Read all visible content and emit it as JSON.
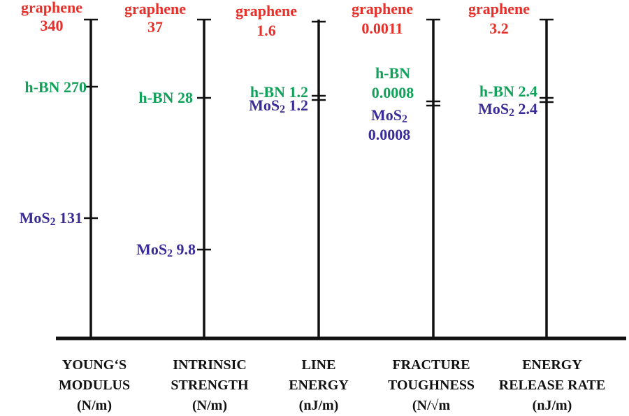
{
  "colors": {
    "graphene": "#e8302a",
    "hbn": "#12a15a",
    "mos2": "#3a2c98",
    "axis": "#111111",
    "label": "#111111"
  },
  "chart_data": {
    "type": "multi-axis-comparison",
    "materials": [
      "graphene",
      "h-BN",
      "MoS2"
    ],
    "axes": [
      {
        "id": "youngs",
        "label_lines": [
          "YOUNG‘S",
          "MODULUS",
          "(N/m)"
        ],
        "values": {
          "graphene": {
            "lines": [
              "graphene",
              "340"
            ],
            "value": 340
          },
          "hbn": {
            "lines": [
              "h-BN 270"
            ],
            "value": 270
          },
          "mos2": {
            "lines": [
              "MoS2 131"
            ],
            "value": 131
          }
        }
      },
      {
        "id": "strength",
        "label_lines": [
          "INTRINSIC",
          "STRENGTH",
          "(N/m)"
        ],
        "values": {
          "graphene": {
            "lines": [
              "graphene",
              "37"
            ],
            "value": 37
          },
          "hbn": {
            "lines": [
              "h-BN 28"
            ],
            "value": 28
          },
          "mos2": {
            "lines": [
              "MoS2 9.8"
            ],
            "value": 9.8
          }
        }
      },
      {
        "id": "line-energy",
        "label_lines": [
          "LINE",
          "ENERGY",
          "(nJ/m)"
        ],
        "values": {
          "graphene": {
            "lines": [
              "graphene",
              "1.6"
            ],
            "value": 1.6
          },
          "hbn": {
            "lines": [
              "h-BN 1.2"
            ],
            "value": 1.2
          },
          "mos2": {
            "lines": [
              "MoS2 1.2"
            ],
            "value": 1.2
          }
        }
      },
      {
        "id": "toughness",
        "label_lines": [
          "FRACTURE",
          "TOUGHNESS",
          "(N/√m"
        ],
        "values": {
          "graphene": {
            "lines": [
              "graphene",
              "0.0011"
            ],
            "value": 0.0011
          },
          "hbn": {
            "lines": [
              "h-BN",
              "0.0008"
            ],
            "value": 0.0008
          },
          "mos2": {
            "lines": [
              "MoS2",
              "0.0008"
            ],
            "value": 0.0008
          }
        }
      },
      {
        "id": "release-rate",
        "label_lines": [
          "ENERGY",
          "RELEASE RATE",
          "(nJ/m)"
        ],
        "values": {
          "graphene": {
            "lines": [
              "graphene",
              "3.2"
            ],
            "value": 3.2
          },
          "hbn": {
            "lines": [
              "h-BN 2.4"
            ],
            "value": 2.4
          },
          "mos2": {
            "lines": [
              "MoS2 2.4"
            ],
            "value": 2.4
          }
        }
      }
    ]
  }
}
